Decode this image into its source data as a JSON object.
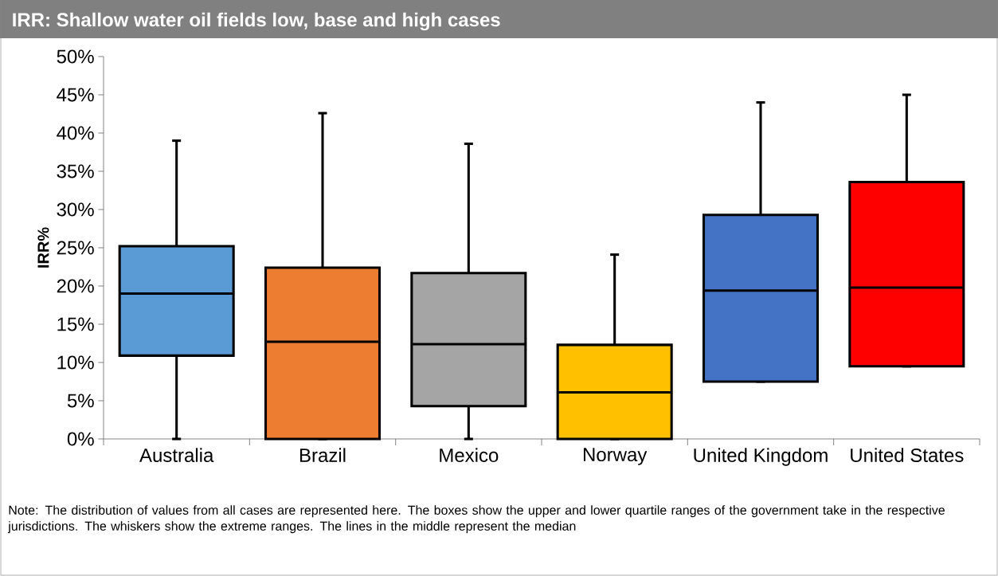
{
  "chart_data": {
    "type": "box",
    "title": "IRR: Shallow water oil fields low, base and high cases",
    "ylabel": "IRR%",
    "categories": [
      "Australia",
      "Brazil",
      "Mexico",
      "Norway",
      "United Kingdom",
      "United States"
    ],
    "boxes": [
      {
        "low": 0,
        "q1": 10.9,
        "median": 19.0,
        "q3": 25.2,
        "high": 39.0
      },
      {
        "low": 0,
        "q1": 0,
        "median": 12.7,
        "q3": 22.4,
        "high": 42.6
      },
      {
        "low": 0,
        "q1": 4.3,
        "median": 12.4,
        "q3": 21.7,
        "high": 38.6
      },
      {
        "low": 0,
        "q1": 0,
        "median": 6.1,
        "q3": 12.3,
        "high": 24.1
      },
      {
        "low": 7.5,
        "q1": 7.5,
        "median": 19.4,
        "q3": 29.3,
        "high": 44.0
      },
      {
        "low": 9.5,
        "q1": 9.5,
        "median": 19.8,
        "q3": 33.6,
        "high": 45.0
      }
    ],
    "colors": [
      "#5b9bd5",
      "#ed7d31",
      "#a5a5a5",
      "#ffc000",
      "#4472c4",
      "#ff0000"
    ],
    "ylim": [
      0,
      50
    ],
    "yticks": [
      {
        "value": 0,
        "label": "0%"
      },
      {
        "value": 5,
        "label": "5%"
      },
      {
        "value": 10,
        "label": "10%"
      },
      {
        "value": 15,
        "label": "15%"
      },
      {
        "value": 20,
        "label": "20%"
      },
      {
        "value": 25,
        "label": "25%"
      },
      {
        "value": 30,
        "label": "30%"
      },
      {
        "value": 35,
        "label": "35%"
      },
      {
        "value": 40,
        "label": "40%"
      },
      {
        "value": 45,
        "label": "45%"
      },
      {
        "value": 50,
        "label": "50%"
      }
    ],
    "annotations": [
      "Note: The distribution of values from all cases are represented here. The boxes show the upper and lower quartile ranges of the government take in the respective jurisdictions. The whiskers show the extreme ranges. The lines in the middle represent the median"
    ]
  }
}
